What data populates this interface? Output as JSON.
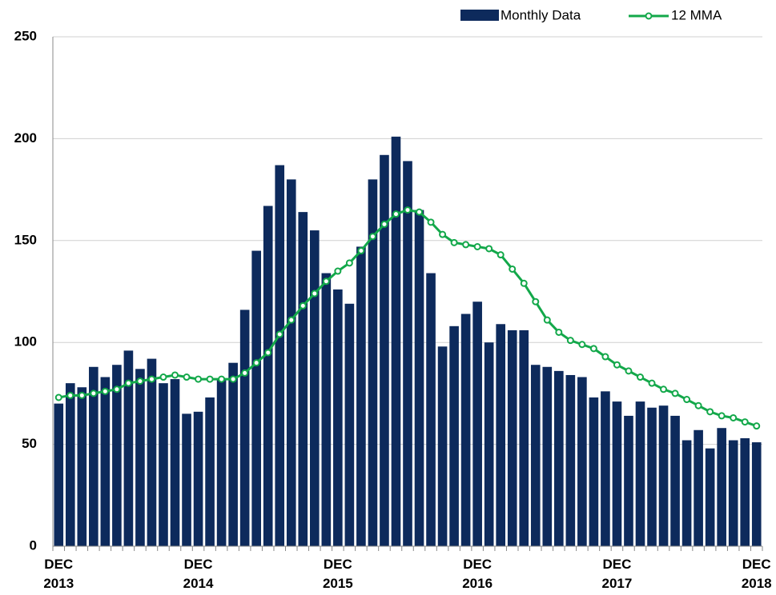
{
  "chart_data": {
    "type": "bar-line",
    "categories": [
      "DEC 2013",
      null,
      null,
      null,
      null,
      null,
      null,
      null,
      null,
      null,
      null,
      null,
      "DEC 2014",
      null,
      null,
      null,
      null,
      null,
      null,
      null,
      null,
      null,
      null,
      null,
      "DEC 2015",
      null,
      null,
      null,
      null,
      null,
      null,
      null,
      null,
      null,
      null,
      null,
      "DEC 2016",
      null,
      null,
      null,
      null,
      null,
      null,
      null,
      null,
      null,
      null,
      null,
      "DEC 2017",
      null,
      null,
      null,
      null,
      null,
      null,
      null,
      null,
      null,
      null,
      null,
      "DEC 2018"
    ],
    "series": [
      {
        "name": "Monthly Data",
        "type": "bar",
        "color": "#0d2a5c",
        "values": [
          70,
          80,
          78,
          88,
          83,
          89,
          96,
          87,
          92,
          80,
          82,
          65,
          66,
          73,
          82,
          90,
          116,
          145,
          167,
          187,
          180,
          164,
          155,
          134,
          126,
          119,
          147,
          180,
          192,
          201,
          189,
          165,
          134,
          98,
          108,
          114,
          120,
          100,
          109,
          106,
          106,
          89,
          88,
          86,
          84,
          83,
          73,
          76,
          71,
          64,
          71,
          68,
          69,
          64,
          52,
          57,
          48,
          58,
          52,
          53,
          51
        ]
      },
      {
        "name": "12 MMA",
        "type": "line",
        "color": "#13a84a",
        "values": [
          73,
          74,
          74,
          75,
          76,
          77,
          80,
          81,
          82,
          83,
          84,
          83,
          82,
          82,
          82,
          82,
          85,
          90,
          95,
          104,
          111,
          118,
          124,
          130,
          135,
          139,
          145,
          152,
          158,
          163,
          165,
          164,
          159,
          153,
          149,
          148,
          147,
          146,
          143,
          136,
          129,
          120,
          111,
          105,
          101,
          99,
          97,
          93,
          89,
          86,
          83,
          80,
          77,
          75,
          72,
          69,
          66,
          64,
          63,
          61,
          59
        ]
      }
    ],
    "ylim": [
      0,
      250
    ],
    "yticks": [
      0,
      50,
      100,
      150,
      200,
      250
    ],
    "grid": true,
    "legend": "top-right"
  }
}
